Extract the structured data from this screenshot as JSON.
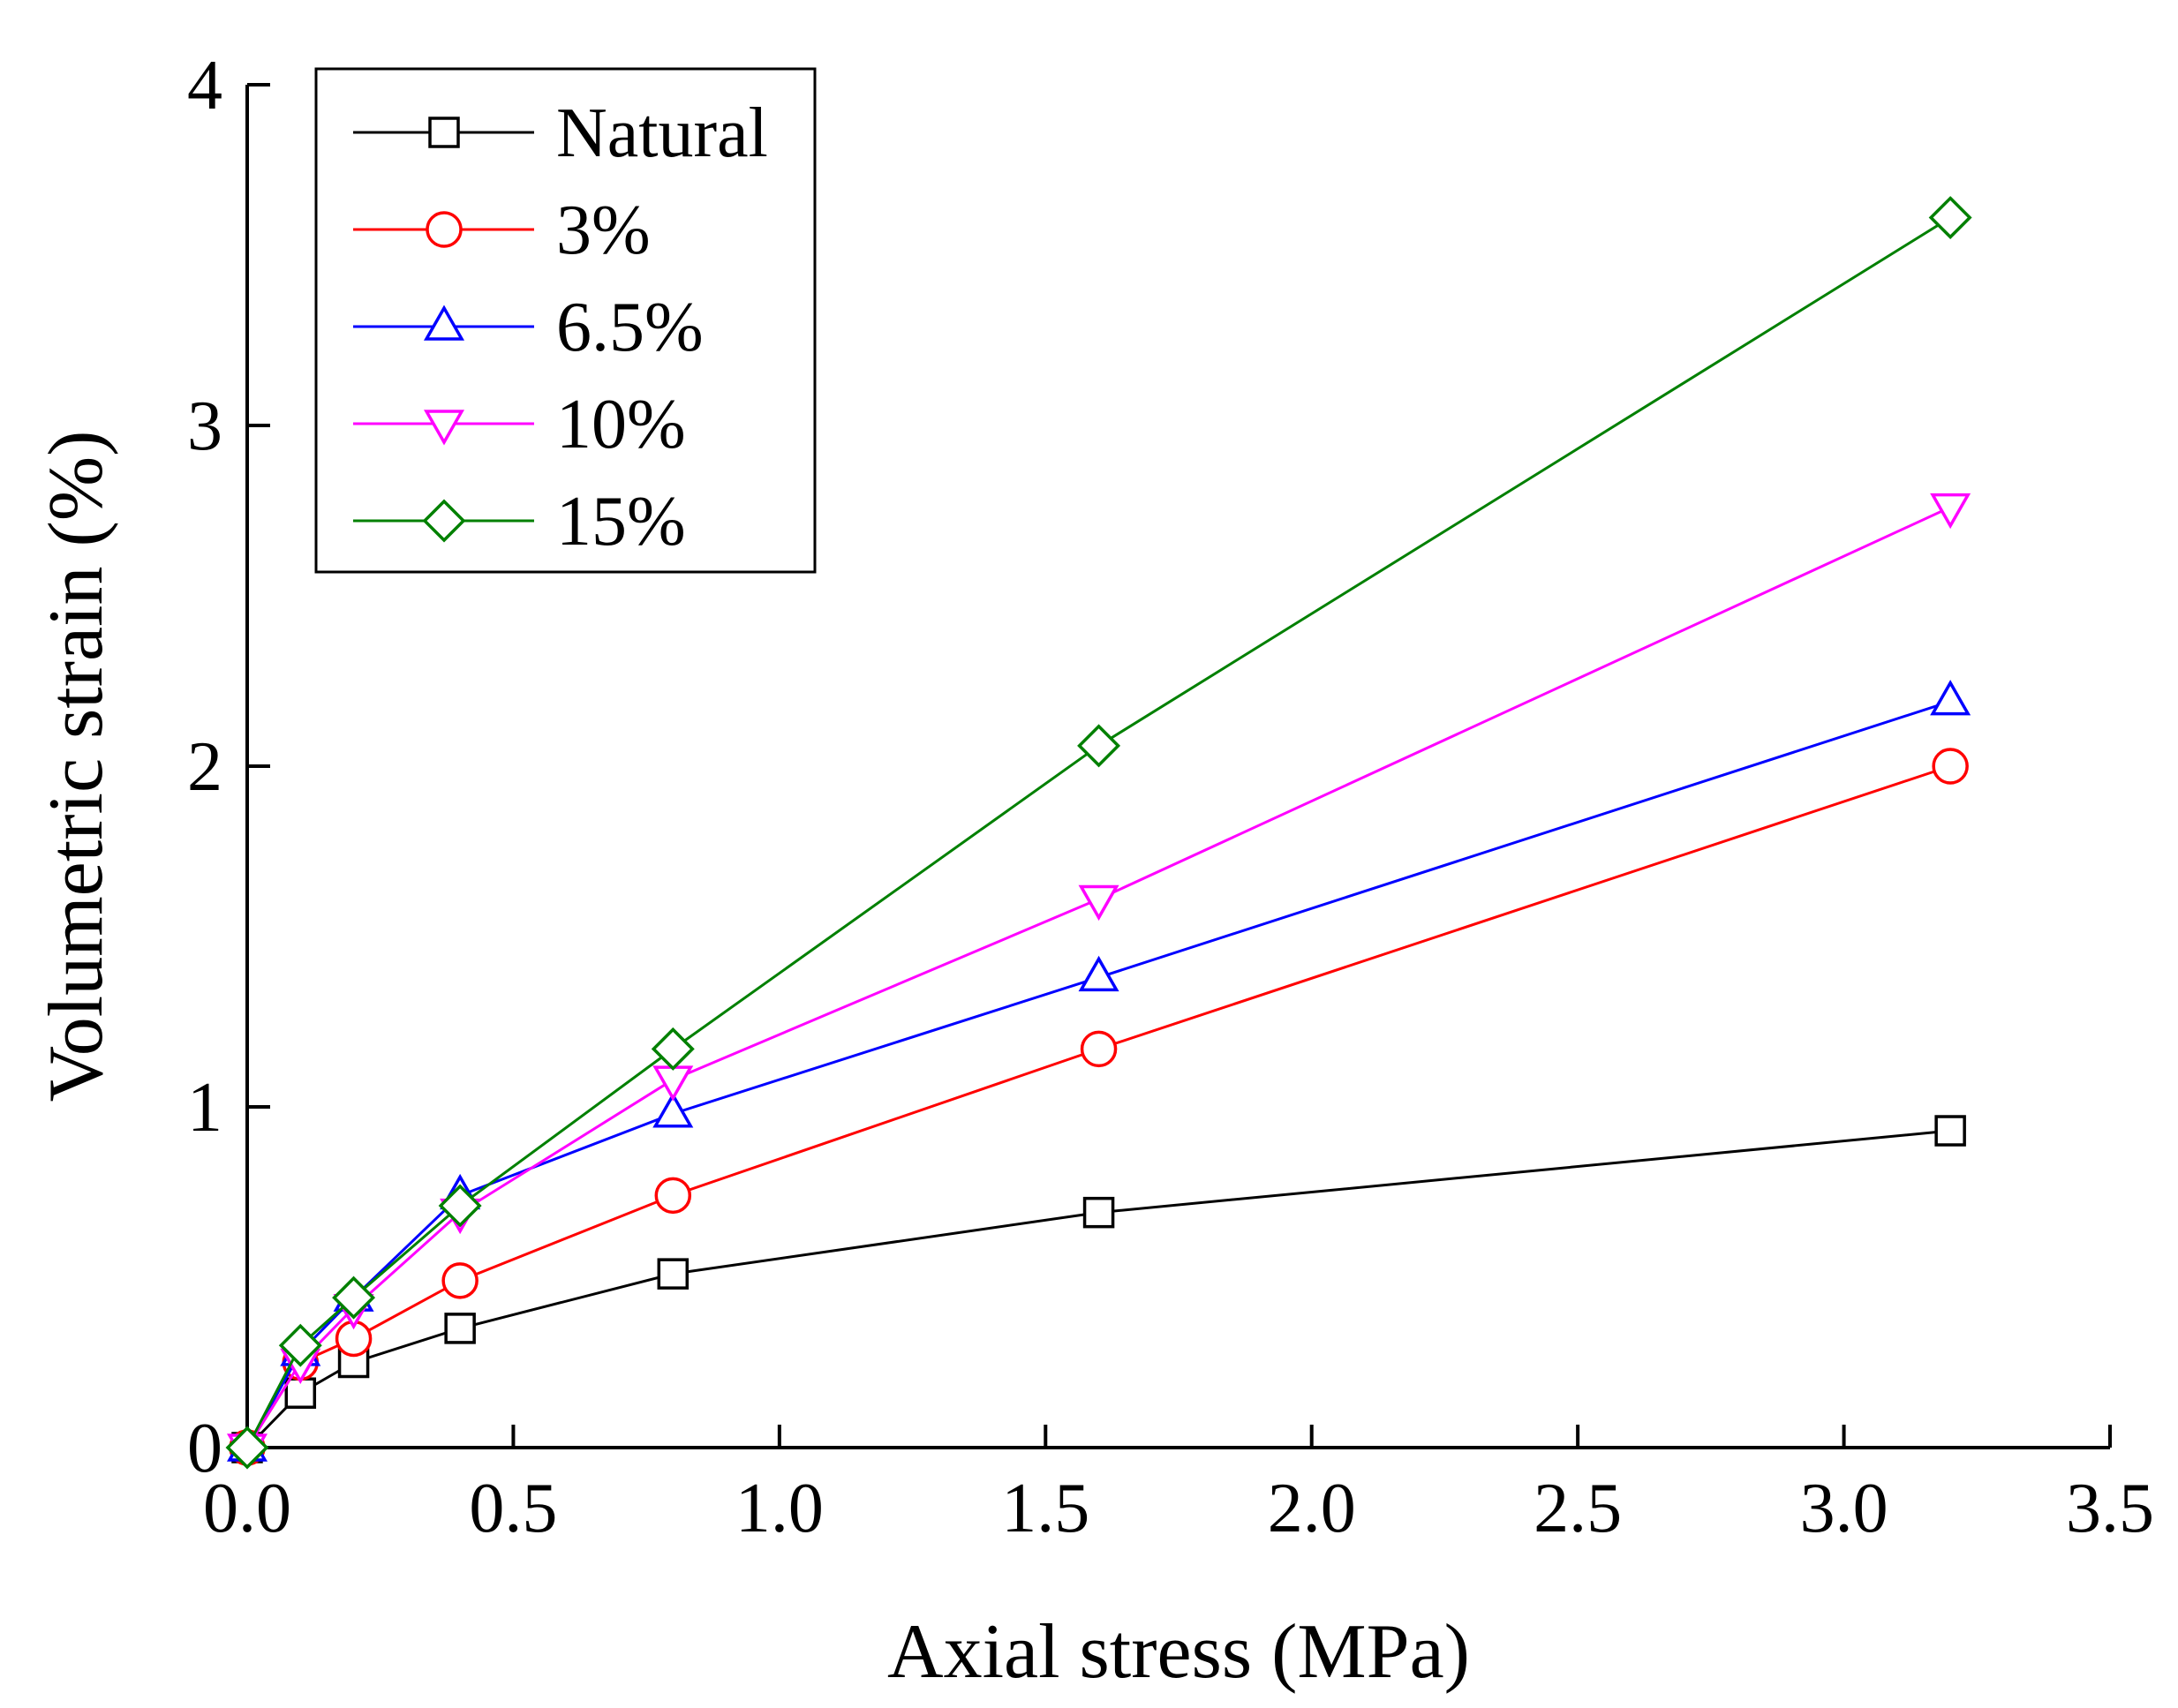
{
  "chart_data": {
    "type": "line",
    "title": "",
    "xlabel": "Axial stress (MPa)",
    "ylabel": "Volumetric strain (%)",
    "xlim": [
      0,
      3.5
    ],
    "ylim": [
      0,
      4
    ],
    "xticks": [
      "0.0",
      "0.5",
      "1.0",
      "1.5",
      "2.0",
      "2.5",
      "3.0",
      "3.5"
    ],
    "yticks": [
      "0",
      "1",
      "2",
      "3",
      "4"
    ],
    "legend_position": "top-left",
    "grid": false,
    "series": [
      {
        "name": "Natural",
        "color": "#000000",
        "marker": "square",
        "x": [
          0,
          0.1,
          0.2,
          0.4,
          0.8,
          1.6,
          3.2
        ],
        "y": [
          0,
          0.16,
          0.25,
          0.35,
          0.51,
          0.69,
          0.93
        ]
      },
      {
        "name": "3%",
        "color": "#ff0000",
        "marker": "circle",
        "x": [
          0,
          0.1,
          0.2,
          0.4,
          0.8,
          1.6,
          3.2
        ],
        "y": [
          0,
          0.25,
          0.32,
          0.49,
          0.74,
          1.17,
          2.0
        ]
      },
      {
        "name": "6.5%",
        "color": "#0000ff",
        "marker": "triangle-up",
        "x": [
          0,
          0.1,
          0.2,
          0.4,
          0.8,
          1.6,
          3.2
        ],
        "y": [
          0,
          0.28,
          0.44,
          0.74,
          0.98,
          1.38,
          2.19
        ]
      },
      {
        "name": "10%",
        "color": "#ff00ff",
        "marker": "triangle-down",
        "x": [
          0,
          0.1,
          0.2,
          0.4,
          0.8,
          1.6,
          3.2
        ],
        "y": [
          0,
          0.25,
          0.41,
          0.69,
          1.08,
          1.61,
          2.76
        ]
      },
      {
        "name": "15%",
        "color": "#008000",
        "marker": "diamond",
        "x": [
          0,
          0.1,
          0.2,
          0.4,
          0.8,
          1.6,
          3.2
        ],
        "y": [
          0,
          0.3,
          0.44,
          0.71,
          1.17,
          2.06,
          3.61
        ]
      }
    ]
  }
}
